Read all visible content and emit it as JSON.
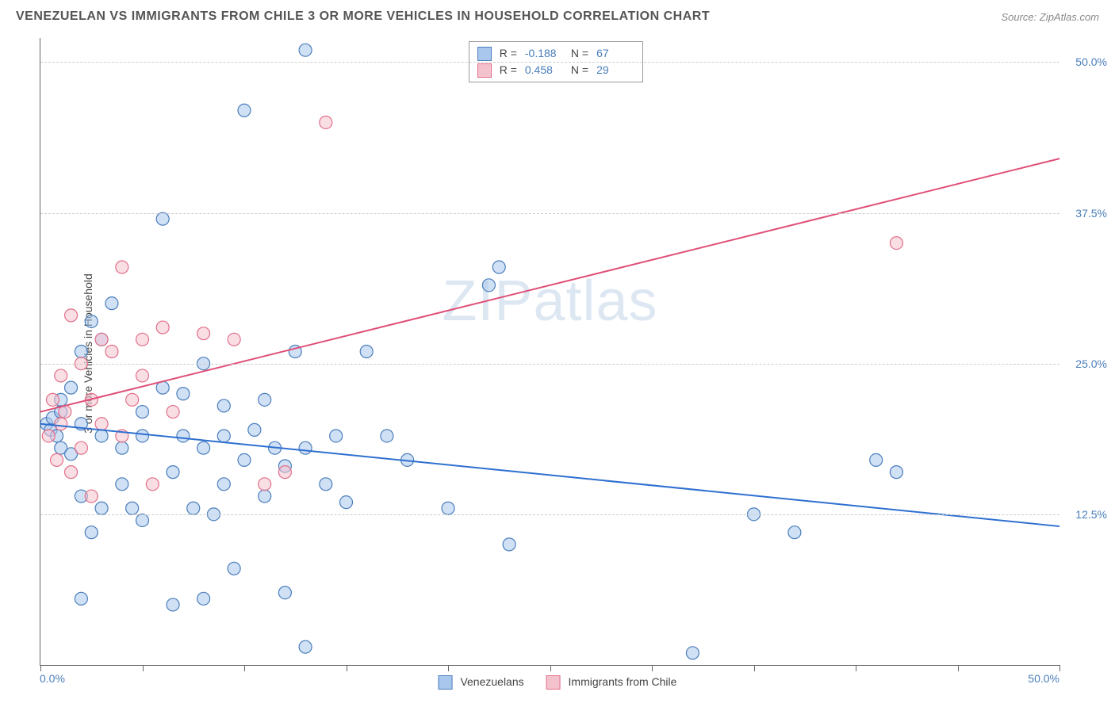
{
  "header": {
    "title": "VENEZUELAN VS IMMIGRANTS FROM CHILE 3 OR MORE VEHICLES IN HOUSEHOLD CORRELATION CHART",
    "source": "Source: ZipAtlas.com"
  },
  "chart": {
    "type": "scatter",
    "ylabel": "3 or more Vehicles in Household",
    "xlim": [
      0,
      50
    ],
    "ylim": [
      0,
      52
    ],
    "x_ticks": [
      0,
      5,
      10,
      15,
      20,
      25,
      30,
      35,
      40,
      45,
      50
    ],
    "y_gridlines": [
      12.5,
      25.0,
      37.5,
      50.0
    ],
    "y_tick_labels": [
      "12.5%",
      "25.0%",
      "37.5%",
      "50.0%"
    ],
    "x_axis_min_label": "0.0%",
    "x_axis_max_label": "50.0%",
    "background_color": "#ffffff",
    "grid_color": "#cccccc",
    "axis_color": "#666666",
    "label_color": "#4a7ebb",
    "marker_radius": 8,
    "marker_opacity": 0.55,
    "line_width": 2,
    "watermark": "ZIPatlas",
    "series": [
      {
        "name": "Venezuelans",
        "fill_color": "#a9c6ec",
        "stroke_color": "#4a7ebb",
        "line_color": "#2e6fd0",
        "trend": {
          "x1": 0,
          "y1": 20.0,
          "x2": 50,
          "y2": 11.5
        },
        "corr": {
          "R": "-0.188",
          "N": "67"
        },
        "points": [
          [
            0.3,
            20.0
          ],
          [
            0.5,
            19.5
          ],
          [
            0.6,
            20.5
          ],
          [
            0.8,
            19.0
          ],
          [
            1.0,
            21.0
          ],
          [
            1.0,
            18.0
          ],
          [
            1.0,
            22.0
          ],
          [
            1.5,
            23.0
          ],
          [
            1.5,
            17.5
          ],
          [
            2.0,
            26.0
          ],
          [
            2.0,
            14.0
          ],
          [
            2.0,
            5.5
          ],
          [
            2.0,
            20.0
          ],
          [
            2.5,
            28.5
          ],
          [
            2.5,
            11.0
          ],
          [
            3.0,
            13.0
          ],
          [
            3.0,
            27.0
          ],
          [
            3.0,
            19.0
          ],
          [
            3.5,
            30.0
          ],
          [
            4.0,
            15.0
          ],
          [
            4.0,
            18.0
          ],
          [
            4.5,
            13.0
          ],
          [
            5.0,
            19.0
          ],
          [
            5.0,
            21.0
          ],
          [
            5.0,
            12.0
          ],
          [
            6.0,
            23.0
          ],
          [
            6.0,
            37.0
          ],
          [
            6.5,
            16.0
          ],
          [
            6.5,
            5.0
          ],
          [
            7.0,
            19.0
          ],
          [
            7.0,
            22.5
          ],
          [
            7.5,
            13.0
          ],
          [
            8.0,
            25.0
          ],
          [
            8.0,
            18.0
          ],
          [
            8.0,
            5.5
          ],
          [
            8.5,
            12.5
          ],
          [
            9.0,
            19.0
          ],
          [
            9.0,
            15.0
          ],
          [
            9.0,
            21.5
          ],
          [
            9.5,
            8.0
          ],
          [
            10.0,
            46.0
          ],
          [
            10.0,
            17.0
          ],
          [
            10.5,
            19.5
          ],
          [
            11.0,
            22.0
          ],
          [
            11.0,
            14.0
          ],
          [
            11.5,
            18.0
          ],
          [
            12.0,
            16.5
          ],
          [
            12.0,
            6.0
          ],
          [
            12.5,
            26.0
          ],
          [
            13.0,
            51.0
          ],
          [
            13.0,
            18.0
          ],
          [
            13.0,
            1.5
          ],
          [
            14.0,
            15.0
          ],
          [
            14.5,
            19.0
          ],
          [
            15.0,
            13.5
          ],
          [
            16.0,
            26.0
          ],
          [
            17.0,
            19.0
          ],
          [
            18.0,
            17.0
          ],
          [
            20.0,
            13.0
          ],
          [
            22.0,
            31.5
          ],
          [
            22.5,
            33.0
          ],
          [
            23.0,
            10.0
          ],
          [
            32.0,
            1.0
          ],
          [
            35.0,
            12.5
          ],
          [
            37.0,
            11.0
          ],
          [
            41.0,
            17.0
          ],
          [
            42.0,
            16.0
          ]
        ]
      },
      {
        "name": "Immigrants from Chile",
        "fill_color": "#f4c2cd",
        "stroke_color": "#e36f8a",
        "line_color": "#e04f78",
        "trend": {
          "x1": 0,
          "y1": 21.0,
          "x2": 50,
          "y2": 42.0
        },
        "corr": {
          "R": "0.458",
          "N": "29"
        },
        "points": [
          [
            0.4,
            19.0
          ],
          [
            0.6,
            22.0
          ],
          [
            0.8,
            17.0
          ],
          [
            1.0,
            20.0
          ],
          [
            1.0,
            24.0
          ],
          [
            1.2,
            21.0
          ],
          [
            1.5,
            29.0
          ],
          [
            1.5,
            16.0
          ],
          [
            2.0,
            25.0
          ],
          [
            2.0,
            18.0
          ],
          [
            2.5,
            22.0
          ],
          [
            2.5,
            14.0
          ],
          [
            3.0,
            27.0
          ],
          [
            3.0,
            20.0
          ],
          [
            3.5,
            26.0
          ],
          [
            4.0,
            33.0
          ],
          [
            4.0,
            19.0
          ],
          [
            4.5,
            22.0
          ],
          [
            5.0,
            27.0
          ],
          [
            5.0,
            24.0
          ],
          [
            5.5,
            15.0
          ],
          [
            6.0,
            28.0
          ],
          [
            6.5,
            21.0
          ],
          [
            8.0,
            27.5
          ],
          [
            9.5,
            27.0
          ],
          [
            11.0,
            15.0
          ],
          [
            12.0,
            16.0
          ],
          [
            14.0,
            45.0
          ],
          [
            42.0,
            35.0
          ]
        ]
      }
    ]
  },
  "legend": {
    "items": [
      "Venezuelans",
      "Immigrants from Chile"
    ]
  }
}
